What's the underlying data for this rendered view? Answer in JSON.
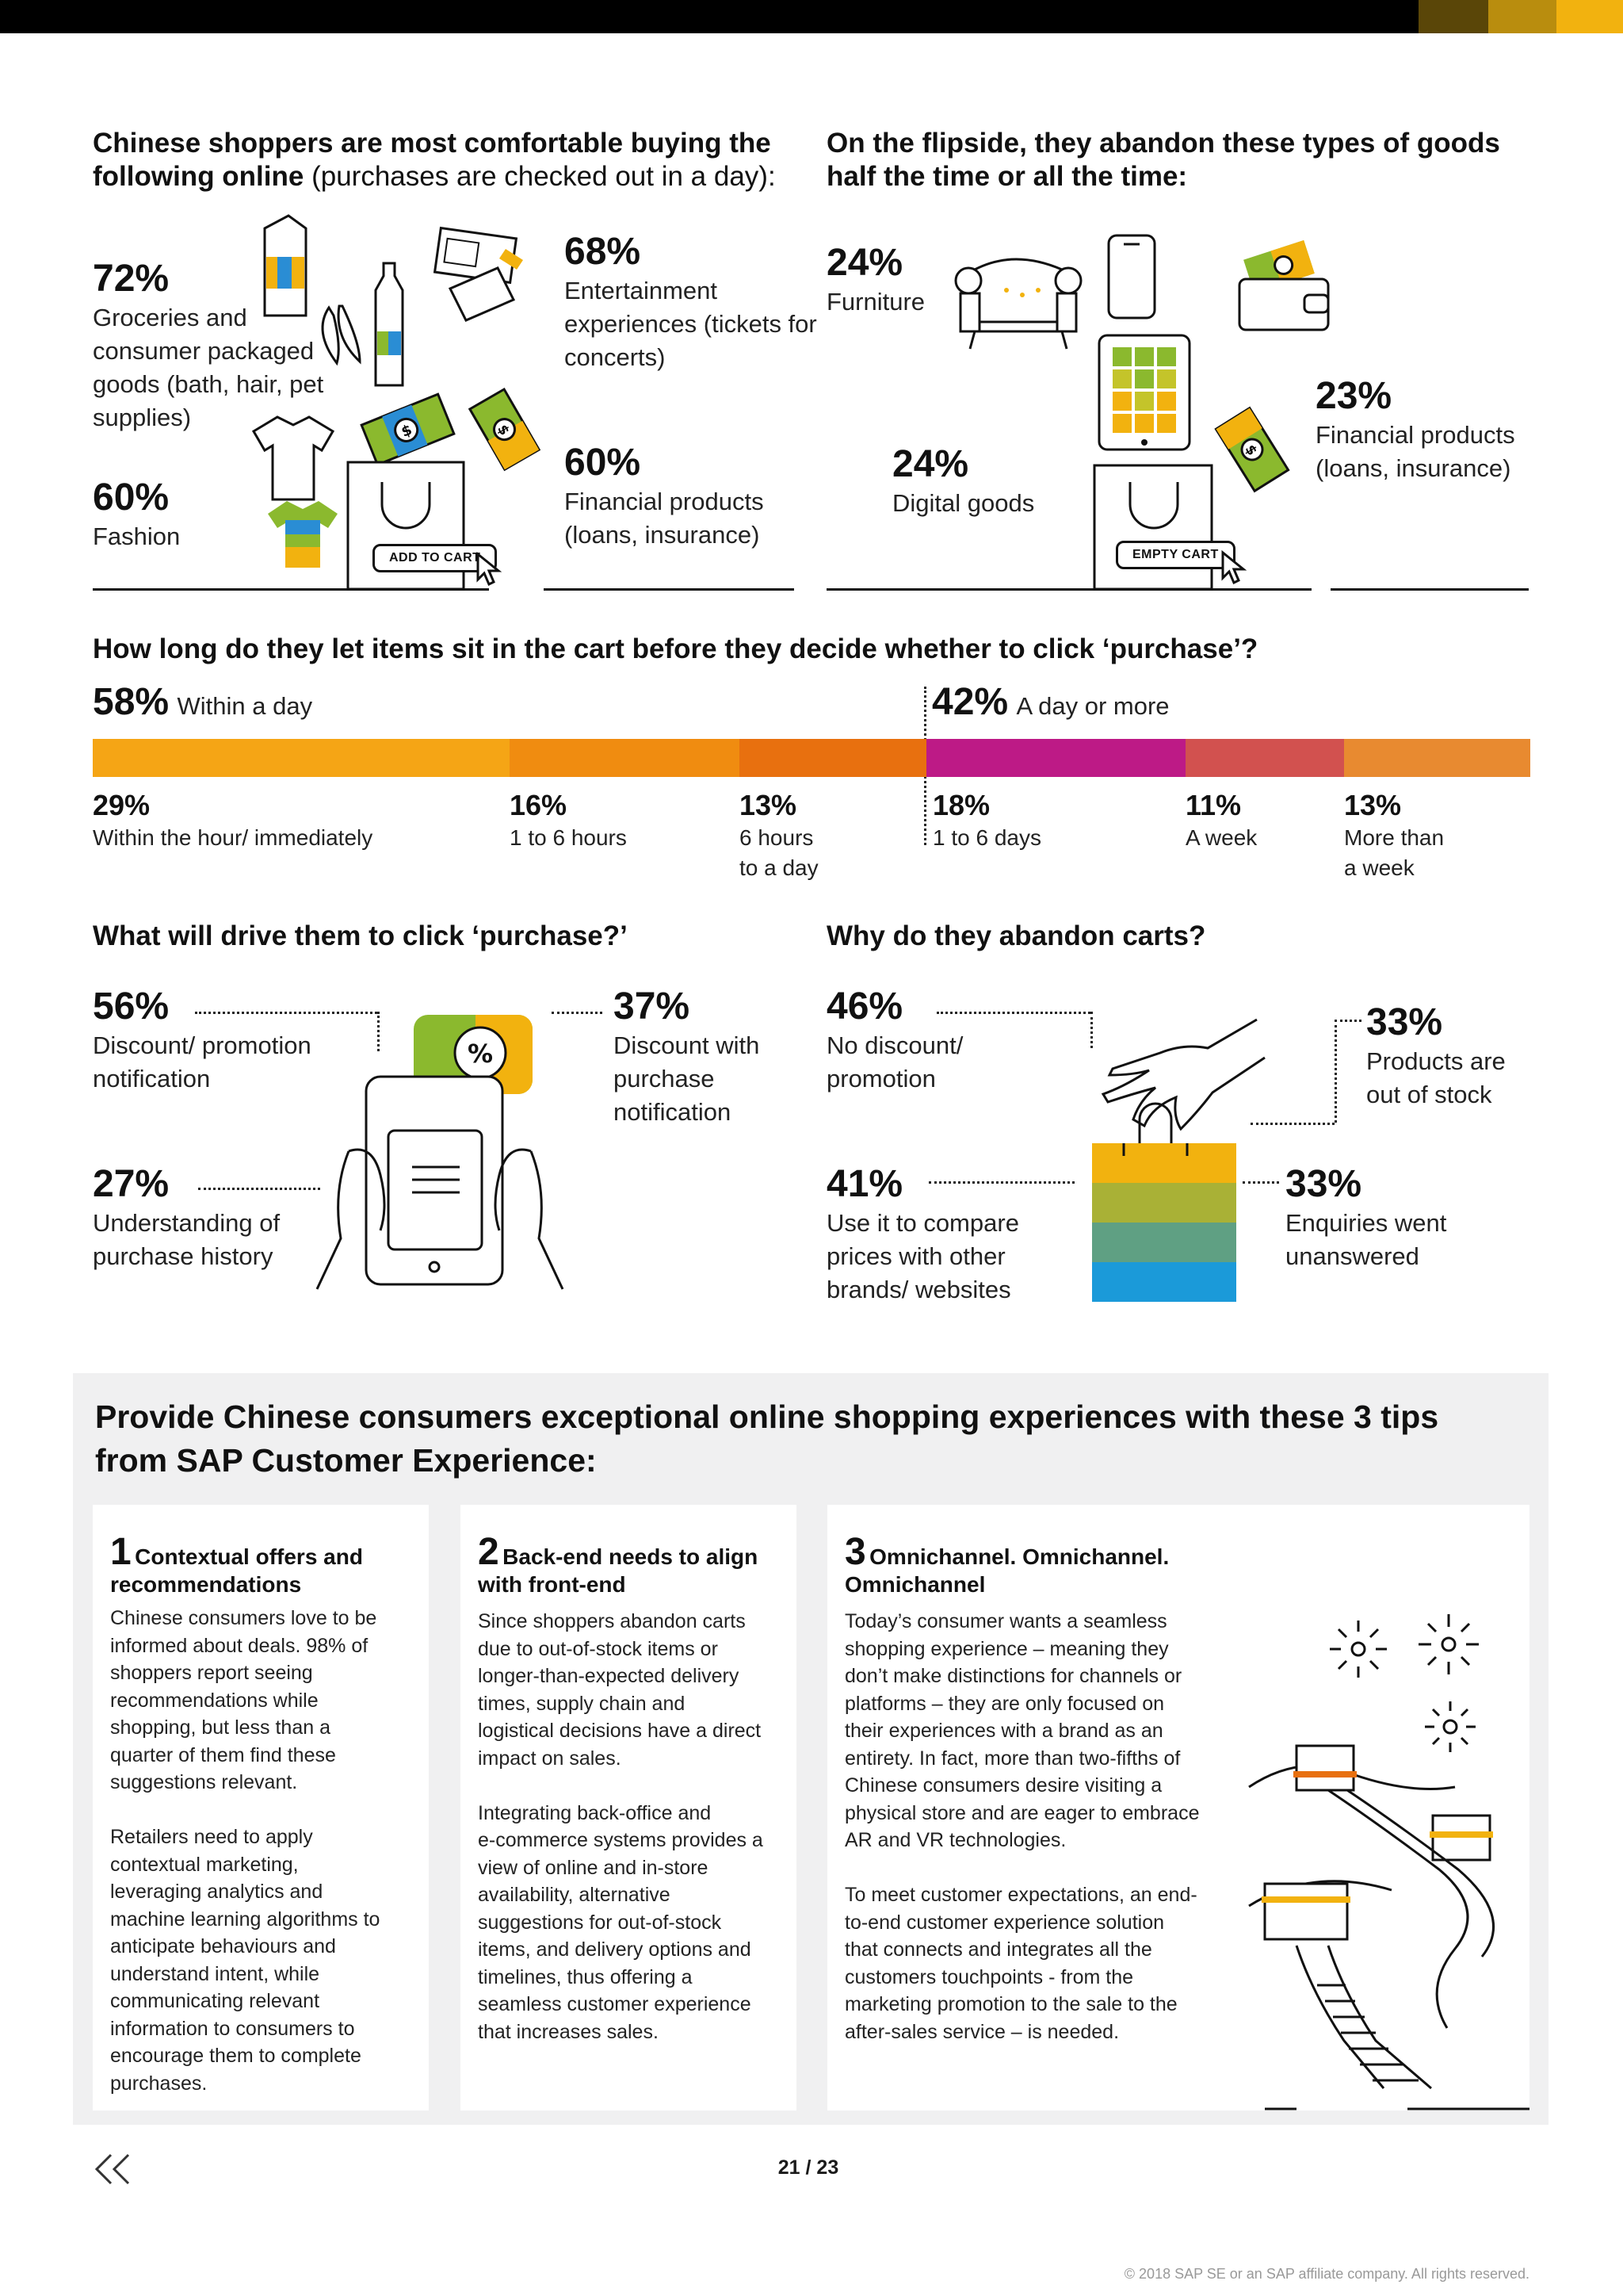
{
  "header_bar": {
    "colors": [
      "#000000",
      "#5a4608",
      "#b98d0e",
      "#f2b20f"
    ]
  },
  "section1": {
    "left_heading_bold": "Chinese shoppers are most comfortable buying the following online",
    "left_heading_light": " (purchases are checked out in a day):",
    "right_heading": "On the flipside, they abandon these types of goods half the time or all the time:",
    "comfortable": [
      {
        "pct": "72%",
        "label": "Groceries and consumer packaged goods (bath, hair, pet supplies)"
      },
      {
        "pct": "68%",
        "label": "Entertainment experiences (tickets for concerts)"
      },
      {
        "pct": "60%",
        "label": "Fashion"
      },
      {
        "pct": "60%",
        "label": "Financial products (loans, insurance)"
      }
    ],
    "abandon": [
      {
        "pct": "24%",
        "label": "Furniture"
      },
      {
        "pct": "23%",
        "label": "Financial products (loans, insurance)"
      },
      {
        "pct": "24%",
        "label": "Digital goods"
      }
    ],
    "add_to_cart": "ADD TO CART",
    "empty_cart": "EMPTY CART"
  },
  "section2": {
    "heading": "How long do they let items sit in the cart before they decide whether to click ‘purchase’?",
    "within_day": {
      "pct": "58%",
      "label": "Within a day"
    },
    "day_or_more": {
      "pct": "42%",
      "label": "A day or more"
    },
    "segments": [
      {
        "pct": "29%",
        "label": "Within the hour/ immediately",
        "value": 29,
        "color": "#f5a515"
      },
      {
        "pct": "16%",
        "label": "1 to 6 hours",
        "value": 16,
        "color": "#f08c10"
      },
      {
        "pct": "13%",
        "label": "6 hours\nto a day",
        "value": 13,
        "color": "#e8700f"
      },
      {
        "pct": "18%",
        "label": "1 to 6 days",
        "value": 18,
        "color": "#bd1a86"
      },
      {
        "pct": "11%",
        "label": "A week",
        "value": 11,
        "color": "#d2514f"
      },
      {
        "pct": "13%",
        "label": "More than\na week",
        "value": 13,
        "color": "#e88a30"
      }
    ]
  },
  "section3": {
    "left_heading": "What will drive them to click ‘purchase?’",
    "right_heading": "Why do they abandon carts?",
    "drivers": [
      {
        "pct": "56%",
        "label": "Discount/ promotion\nnotification"
      },
      {
        "pct": "37%",
        "label": "Discount with\npurchase\nnotification"
      },
      {
        "pct": "27%",
        "label": "Understanding of\npurchase history"
      }
    ],
    "reasons": [
      {
        "pct": "46%",
        "label": "No discount/\npromotion"
      },
      {
        "pct": "33%",
        "label": "Products are\nout of stock"
      },
      {
        "pct": "41%",
        "label": "Use it to compare\nprices with other\nbrands/ websites"
      },
      {
        "pct": "33%",
        "label": "Enquiries went\nunanswered"
      }
    ]
  },
  "tips": {
    "title": "Provide Chinese consumers exceptional online shopping experiences with these 3 tips from SAP Customer Experience:",
    "cards": [
      {
        "num": "1",
        "head_first": "Contextual offers and",
        "head_rest": "recommendations",
        "body": "Chinese consumers love to be\ninformed about deals. 98% of\nshoppers report seeing\nrecommendations while\nshopping, but less than a\nquarter of them find these\nsuggestions relevant.\n\nRetailers need to apply\ncontextual marketing,\nleveraging analytics and\nmachine learning algorithms to\nanticipate behaviours and\nunderstand intent, while\ncommunicating relevant\ninformation to consumers to\nencourage them to complete\npurchases."
      },
      {
        "num": "2",
        "head_first": "Back-end needs to align",
        "head_rest": "with front-end",
        "body": "Since shoppers abandon carts\ndue to out-of-stock items or\nlonger-than-expected delivery\ntimes, supply chain and\nlogistical decisions have a direct\nimpact on sales.\n\nIntegrating back-office and\ne-commerce systems provides a\nview of online and in-store\navailability, alternative\nsuggestions for out-of-stock\nitems, and delivery options and\ntimelines, thus offering a\nseamless customer experience\nthat increases sales."
      },
      {
        "num": "3",
        "head_first": "Omnichannel. Omnichannel.",
        "head_rest": "Omnichannel",
        "body": "Today’s consumer wants a seamless\nshopping experience – meaning they\ndon’t make distinctions for channels or\nplatforms – they are only focused on\ntheir experiences with a brand as an\nentirety. In fact, more than two-fifths of\nChinese consumers desire visiting a\nphysical store and are eager to embrace\nAR and VR technologies.\n\nTo meet customer expectations, an end-\nto-end customer experience solution\nthat connects and integrates all the\ncustomers touchpoints - from the\nmarketing promotion to the sale to the\nafter-sales service – is needed."
      }
    ]
  },
  "footer": {
    "page": "21 / 23",
    "copyright": "© 2018 SAP SE or an SAP affiliate company. All rights reserved."
  }
}
